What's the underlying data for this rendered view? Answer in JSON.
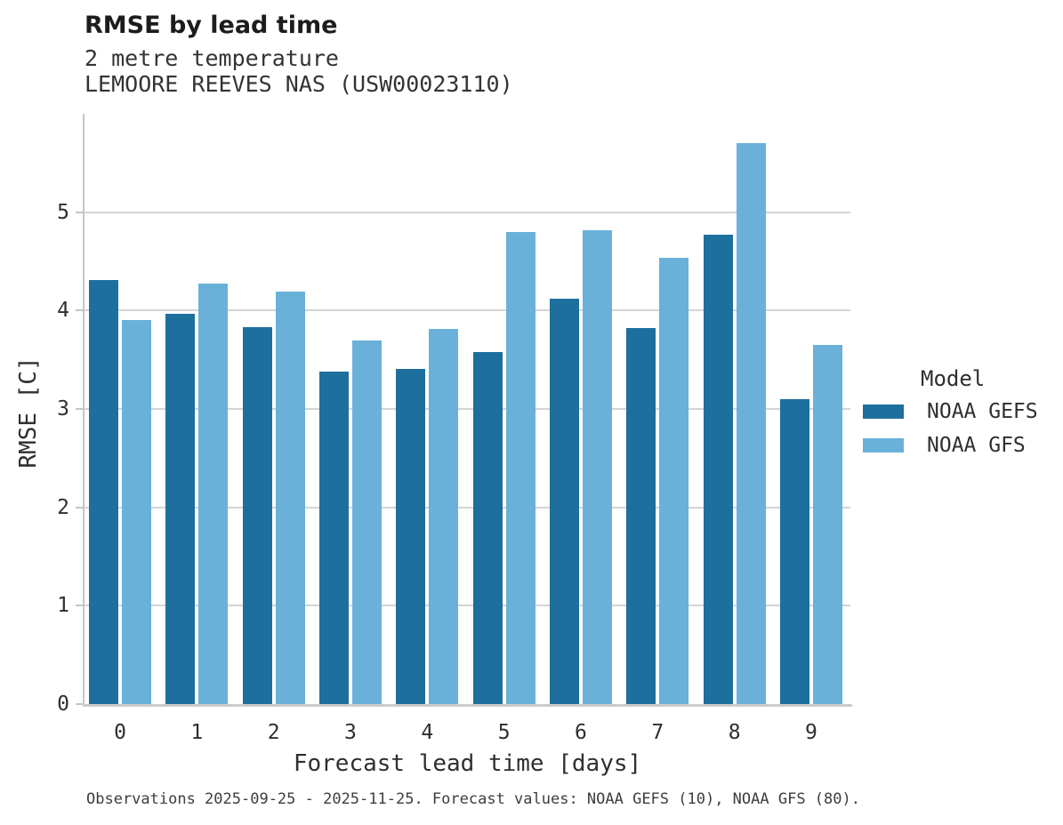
{
  "chart_data": {
    "type": "bar",
    "title": "RMSE by lead time",
    "subtitle_line1": "2 metre temperature",
    "subtitle_line2": "LEMOORE REEVES NAS (USW00023110)",
    "xlabel": "Forecast lead time [days]",
    "ylabel": "RMSE [C]",
    "categories": [
      "0",
      "1",
      "2",
      "3",
      "4",
      "5",
      "6",
      "7",
      "8",
      "9"
    ],
    "series": [
      {
        "name": "NOAA GEFS",
        "color": "#1d6f9e",
        "values": [
          4.31,
          3.97,
          3.83,
          3.38,
          3.41,
          3.58,
          4.12,
          3.82,
          4.77,
          3.1
        ]
      },
      {
        "name": "NOAA GFS",
        "color": "#6ab1d9",
        "values": [
          3.9,
          4.27,
          4.19,
          3.7,
          3.81,
          4.8,
          4.82,
          4.54,
          5.7,
          3.65
        ]
      }
    ],
    "ylim": [
      0,
      6
    ],
    "yticks": [
      0,
      1,
      2,
      3,
      4,
      5
    ],
    "grid": true,
    "legend_title": "Model",
    "legend_position": "right",
    "caption": "Observations 2025-09-25 - 2025-11-25. Forecast values: NOAA GEFS (10), NOAA GFS (80).",
    "colors": {
      "background": "#ffffff",
      "gridline": "#d4d4d4",
      "axis_line": "#c6c6c6",
      "title_text": "#1c1c1c",
      "body_text": "#2f2f2f"
    }
  }
}
